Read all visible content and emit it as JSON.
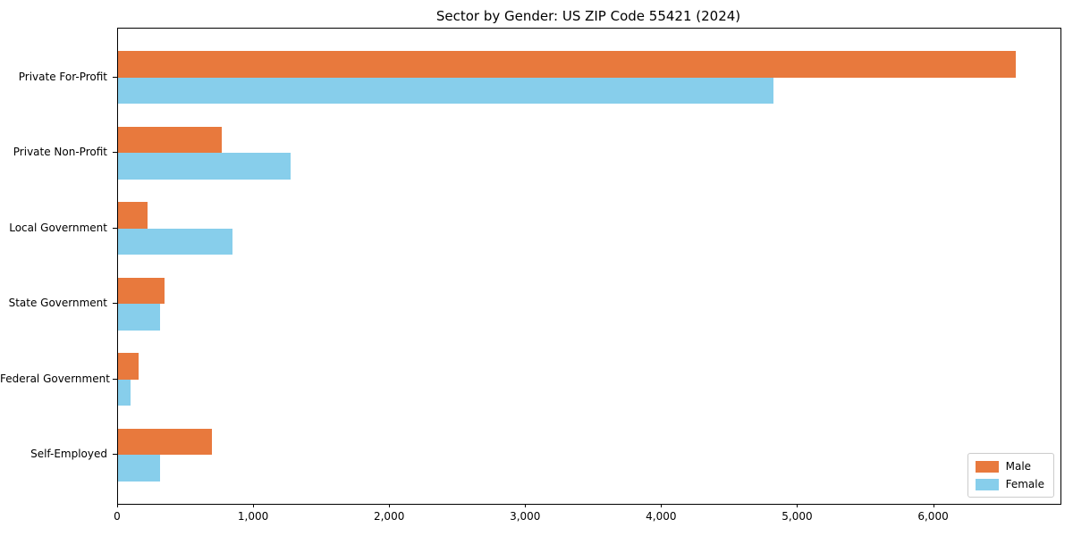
{
  "chart_data": {
    "type": "bar",
    "orientation": "horizontal",
    "title": "Sector by Gender: US ZIP Code 55421 (2024)",
    "categories": [
      "Private For-Profit",
      "Private Non-Profit",
      "Local Government",
      "State Government",
      "Federal Government",
      "Self-Employed"
    ],
    "series": [
      {
        "name": "Male",
        "color": "#E8793D",
        "values": [
          6600,
          760,
          220,
          340,
          150,
          690
        ]
      },
      {
        "name": "Female",
        "color": "#87CEEB",
        "values": [
          4820,
          1270,
          840,
          310,
          90,
          310
        ]
      }
    ],
    "xlim": [
      0,
      6930
    ],
    "xticks": [
      0,
      1000,
      2000,
      3000,
      4000,
      5000,
      6000
    ],
    "xtick_labels": [
      "0",
      "1,000",
      "2,000",
      "3,000",
      "4,000",
      "5,000",
      "6,000"
    ],
    "grid": false,
    "legend_position": "lower right",
    "bar_height_fraction": 0.35,
    "outer_pad_fraction": 0.65
  },
  "colors": {
    "plot_border": "#000000",
    "legend_border": "#cccccc",
    "background": "#ffffff",
    "text": "#000000"
  }
}
